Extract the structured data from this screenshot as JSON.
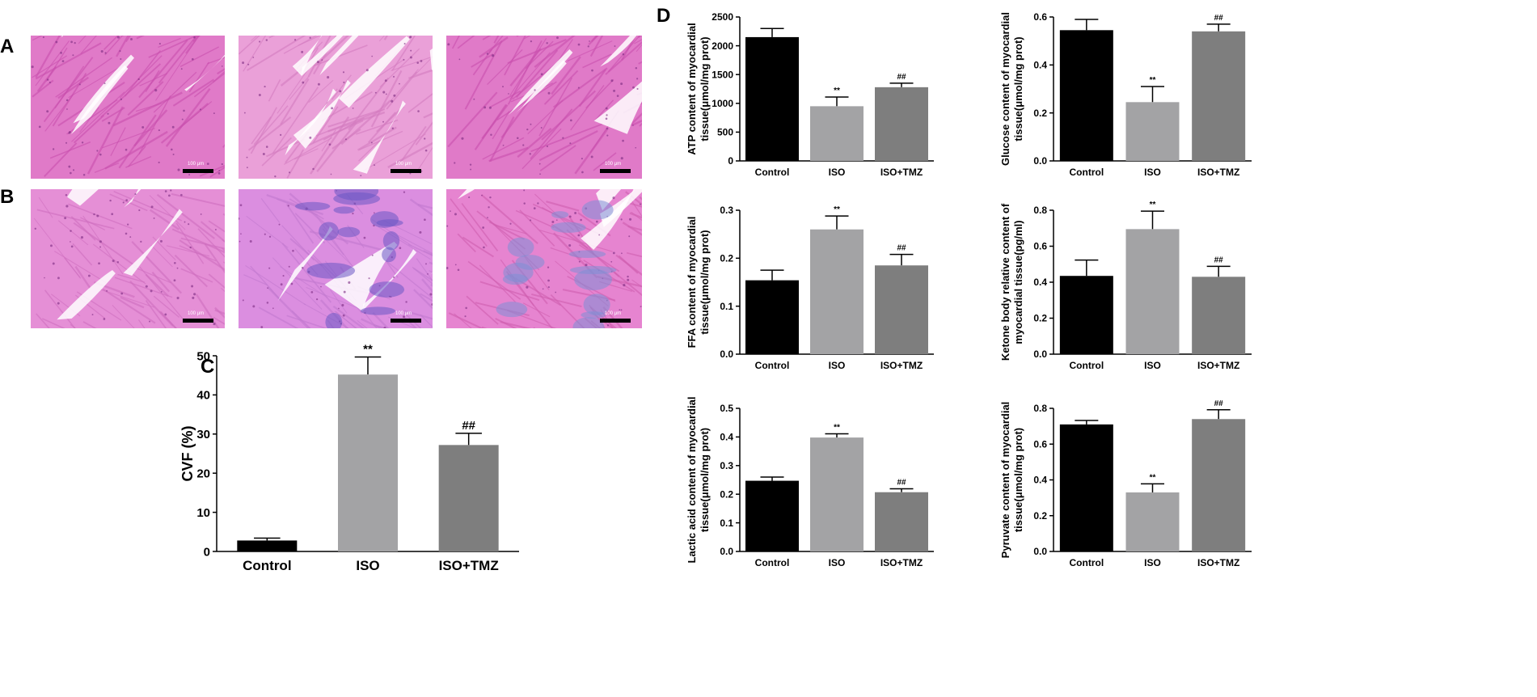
{
  "panels": {
    "a": "A",
    "b": "B",
    "c": "C",
    "d": "D"
  },
  "micrographs": {
    "scale_text": "100 μm",
    "row_a": [
      "he-control",
      "he-iso",
      "he-iso-tmz"
    ],
    "row_b": [
      "masson-control",
      "masson-iso",
      "masson-iso-tmz"
    ]
  },
  "colors": {
    "control": "#000000",
    "iso": "#a3a3a5",
    "iso_tmz": "#7e7e7e",
    "he_pink": "#e070c4",
    "collagen_blue": "#8a7ad4"
  },
  "chart_data": [
    {
      "id": "C",
      "type": "bar",
      "categories": [
        "Control",
        "ISO",
        "ISO+TMZ"
      ],
      "values": [
        2.8,
        45.2,
        27.2
      ],
      "errors": [
        0.6,
        4.5,
        3.0
      ],
      "annotations": [
        "",
        "**",
        "##"
      ],
      "ylabel": "CVF (%)",
      "ylim": [
        0,
        50
      ],
      "yticks": [
        0,
        10,
        20,
        30,
        40,
        50
      ]
    },
    {
      "id": "D1",
      "type": "bar",
      "categories": [
        "Control",
        "ISO",
        "ISO+TMZ"
      ],
      "values": [
        2150,
        950,
        1280
      ],
      "errors": [
        150,
        160,
        70
      ],
      "annotations": [
        "",
        "**",
        "##"
      ],
      "ylabel": [
        "ATP content of myocardial",
        "tissue(μmol/mg prot)"
      ],
      "ylim": [
        0,
        2500
      ],
      "yticks": [
        0,
        500,
        1000,
        1500,
        2000,
        2500
      ]
    },
    {
      "id": "D2",
      "type": "bar",
      "categories": [
        "Control",
        "ISO",
        "ISO+TMZ"
      ],
      "values": [
        0.545,
        0.245,
        0.54
      ],
      "errors": [
        0.045,
        0.065,
        0.03
      ],
      "annotations": [
        "",
        "**",
        "##"
      ],
      "ylabel": [
        "Glucose content of myocardial",
        "tissue(μmol/mg prot)"
      ],
      "ylim": [
        0,
        0.6
      ],
      "yticks": [
        0.0,
        0.2,
        0.4,
        0.6
      ]
    },
    {
      "id": "D3",
      "type": "bar",
      "categories": [
        "Control",
        "ISO",
        "ISO+TMZ"
      ],
      "values": [
        0.154,
        0.26,
        0.185
      ],
      "errors": [
        0.021,
        0.028,
        0.023
      ],
      "annotations": [
        "",
        "**",
        "##"
      ],
      "ylabel": [
        "FFA content of myocardial",
        "tissue(μmol/mg prot)"
      ],
      "ylim": [
        0,
        0.3
      ],
      "yticks": [
        0.0,
        0.1,
        0.2,
        0.3
      ]
    },
    {
      "id": "D4",
      "type": "bar",
      "categories": [
        "Control",
        "ISO",
        "ISO+TMZ"
      ],
      "values": [
        0.435,
        0.695,
        0.43
      ],
      "errors": [
        0.088,
        0.1,
        0.058
      ],
      "annotations": [
        "",
        "**",
        "##"
      ],
      "ylabel": [
        "Ketone body relative content of",
        "myocardial tissue(pg/ml)"
      ],
      "ylim": [
        0,
        0.8
      ],
      "yticks": [
        0.0,
        0.2,
        0.4,
        0.6,
        0.8
      ]
    },
    {
      "id": "D5",
      "type": "bar",
      "categories": [
        "Control",
        "ISO",
        "ISO+TMZ"
      ],
      "values": [
        0.247,
        0.398,
        0.207
      ],
      "errors": [
        0.013,
        0.013,
        0.012
      ],
      "annotations": [
        "",
        "**",
        "##"
      ],
      "ylabel": [
        "Lactic acid content of myocardial",
        "tissue(μmol/mg prot)"
      ],
      "ylim": [
        0,
        0.5
      ],
      "yticks": [
        0.0,
        0.1,
        0.2,
        0.3,
        0.4,
        0.5
      ]
    },
    {
      "id": "D6",
      "type": "bar",
      "categories": [
        "Control",
        "ISO",
        "ISO+TMZ"
      ],
      "values": [
        0.71,
        0.33,
        0.74
      ],
      "errors": [
        0.022,
        0.048,
        0.052
      ],
      "annotations": [
        "",
        "**",
        "##"
      ],
      "ylabel": [
        "Pyruvate content of myocardial",
        "tissue(μmol/mg prot)"
      ],
      "ylim": [
        0,
        0.8
      ],
      "yticks": [
        0.0,
        0.2,
        0.4,
        0.6,
        0.8
      ]
    }
  ]
}
